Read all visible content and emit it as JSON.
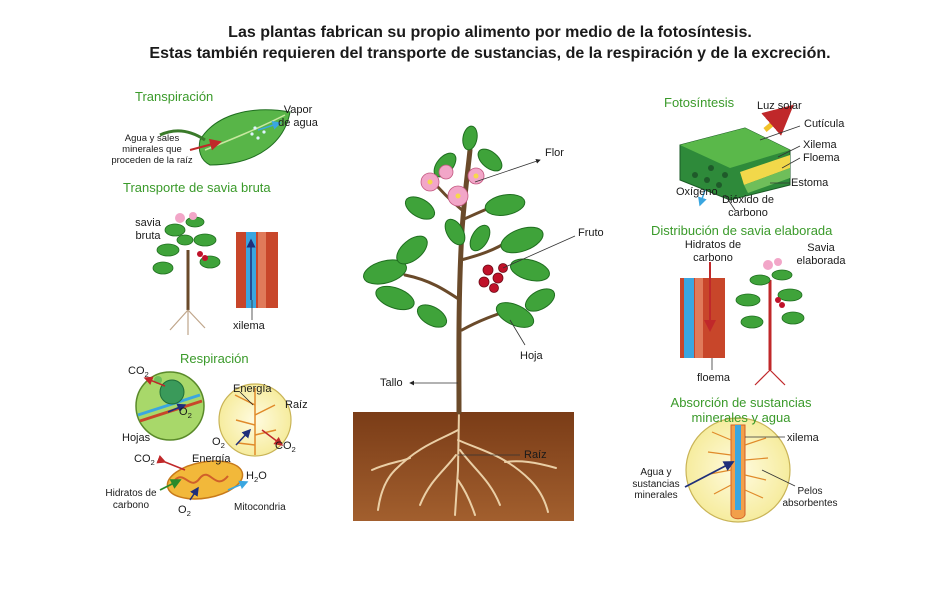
{
  "title": {
    "line1": "Las plantas fabrican su propio alimento por medio de la fotosíntesis.",
    "line2": "Estas también requieren del transporte de sustancias, de la respiración y de la excreción."
  },
  "transpiracion": {
    "heading": "Transpiración",
    "vapor": [
      "Vapor",
      "de agua"
    ],
    "agua": [
      "Agua y sales",
      "minerales que",
      "proceden de la raíz"
    ]
  },
  "savia_bruta": {
    "heading": "Transporte de savia bruta",
    "savia": [
      "savia",
      "bruta"
    ],
    "xilema": "xilema"
  },
  "respiracion": {
    "heading": "Respiración",
    "co2_base": "CO",
    "co2_sub": "2",
    "o2_base": "O",
    "o2_sub": "2",
    "hojas": "Hojas",
    "energia": "Energía",
    "raiz": "Raíz",
    "h2o_base": "H",
    "h2o_sub": "2",
    "h2o_end": "O",
    "hidratos": [
      "Hidratos de",
      "carbono"
    ],
    "mitocondria": "Mitocondria"
  },
  "center": {
    "flor": "Flor",
    "fruto": "Fruto",
    "hoja": "Hoja",
    "tallo": "Tallo",
    "raiz": "Raíz"
  },
  "fotosintesis": {
    "heading": "Fotosíntesis",
    "luz": "Luz solar",
    "cuticula": "Cutícula",
    "xilema": "Xilema",
    "floema": "Floema",
    "estoma": "Estoma",
    "oxigeno": "Oxígeno",
    "dioxido": [
      "Dióxido de",
      "carbono"
    ]
  },
  "savia_elaborada": {
    "heading": "Distribución de savia elaborada",
    "hidratos": [
      "Hidratos de",
      "carbono"
    ],
    "savia": [
      "Savia",
      "elaborada"
    ],
    "floema": "floema"
  },
  "absorcion": {
    "heading": [
      "Absorción de sustancias",
      "minerales y agua"
    ],
    "xilema": "xilema",
    "agua": [
      "Agua y",
      "sustancias",
      "minerales"
    ],
    "pelos": [
      "Pelos",
      "absorbentes"
    ]
  },
  "colors": {
    "heading_green": "#3a9a2a",
    "leaf_green": "#3fa33a",
    "soil": "#8a4a22",
    "root": "#e8c9a0",
    "xylem_blue": "#3aa6e0",
    "phloem_red": "#c8462a"
  }
}
